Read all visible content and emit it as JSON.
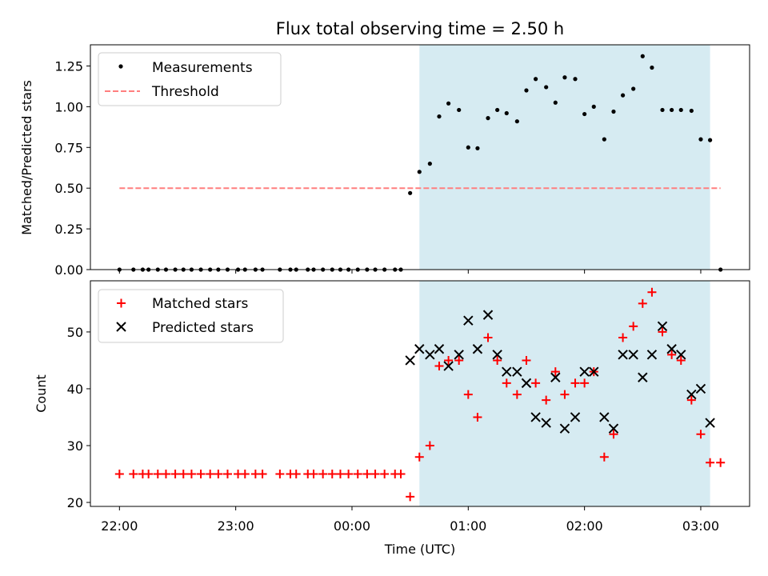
{
  "chart_data": {
    "title": "Flux total observing time = 2.50 h",
    "xlabel": "Time (UTC)",
    "x_tick_labels": [
      "22:00",
      "23:00",
      "00:00",
      "01:00",
      "02:00",
      "03:00"
    ],
    "x_tick_hours": [
      0,
      1,
      2,
      3,
      4,
      5
    ],
    "x_range_hours": [
      -0.25,
      5.42
    ],
    "x_start": "22:00",
    "shaded_span_hours": [
      2.58,
      5.08
    ],
    "shade_color": "#add8e6",
    "top_panel": {
      "type": "scatter",
      "ylabel": "Matched/Predicted stars",
      "ylim": [
        0,
        1.38
      ],
      "y_ticks": [
        0.0,
        0.25,
        0.5,
        0.75,
        1.0,
        1.25
      ],
      "y_tick_labels": [
        "0.00",
        "0.25",
        "0.50",
        "0.75",
        "1.00",
        "1.25"
      ],
      "legend": [
        "Measurements",
        "Threshold"
      ],
      "threshold": {
        "y": 0.5,
        "x_range_hours": [
          0,
          5.17
        ],
        "color": "#ff7f7f"
      },
      "measurements": {
        "color": "#000000",
        "x_hours": [
          0,
          0.12,
          0.2,
          0.25,
          0.33,
          0.4,
          0.48,
          0.55,
          0.62,
          0.7,
          0.78,
          0.85,
          0.93,
          1.02,
          1.08,
          1.17,
          1.23,
          1.38,
          1.47,
          1.52,
          1.62,
          1.67,
          1.75,
          1.83,
          1.9,
          1.97,
          2.05,
          2.13,
          2.2,
          2.28,
          2.37,
          2.42,
          2.5,
          2.58,
          2.67,
          2.75,
          2.83,
          2.92,
          3.0,
          3.08,
          3.17,
          3.25,
          3.33,
          3.42,
          3.5,
          3.58,
          3.67,
          3.75,
          3.83,
          3.92,
          4.0,
          4.08,
          4.17,
          4.25,
          4.33,
          4.42,
          4.5,
          4.58,
          4.67,
          4.75,
          4.83,
          4.92,
          5.0,
          5.08,
          5.17
        ],
        "y": [
          0,
          0,
          0,
          0,
          0,
          0,
          0,
          0,
          0,
          0,
          0,
          0,
          0,
          0,
          0,
          0,
          0,
          0,
          0,
          0,
          0,
          0,
          0,
          0,
          0,
          0,
          0,
          0,
          0,
          0,
          0,
          0,
          0.47,
          0.6,
          0.65,
          0.94,
          1.02,
          0.98,
          0.75,
          0.745,
          0.93,
          0.98,
          0.96,
          0.91,
          1.1,
          1.17,
          1.12,
          1.025,
          1.18,
          1.17,
          0.955,
          1.0,
          0.8,
          0.97,
          1.07,
          1.11,
          1.31,
          1.24,
          0.98,
          0.98,
          0.98,
          0.975,
          0.8,
          0.795,
          0.0
        ]
      }
    },
    "bottom_panel": {
      "type": "scatter",
      "ylabel": "Count",
      "ylim": [
        19.3,
        59.0
      ],
      "y_ticks": [
        20,
        30,
        40,
        50
      ],
      "y_tick_labels": [
        "20",
        "30",
        "40",
        "50"
      ],
      "legend": [
        "Matched stars",
        "Predicted stars"
      ],
      "matched": {
        "color": "#ff0000",
        "x_hours": [
          0,
          0.12,
          0.2,
          0.25,
          0.33,
          0.4,
          0.48,
          0.55,
          0.62,
          0.7,
          0.78,
          0.85,
          0.93,
          1.02,
          1.08,
          1.17,
          1.23,
          1.38,
          1.47,
          1.52,
          1.62,
          1.67,
          1.75,
          1.83,
          1.9,
          1.97,
          2.05,
          2.13,
          2.2,
          2.28,
          2.37,
          2.42,
          2.5,
          2.58,
          2.67,
          2.75,
          2.83,
          2.92,
          3.0,
          3.08,
          3.17,
          3.25,
          3.33,
          3.42,
          3.5,
          3.58,
          3.67,
          3.75,
          3.83,
          3.92,
          4.0,
          4.08,
          4.17,
          4.25,
          4.33,
          4.42,
          4.5,
          4.58,
          4.67,
          4.75,
          4.83,
          4.92,
          5.0,
          5.08,
          5.17
        ],
        "y": [
          25,
          25,
          25,
          25,
          25,
          25,
          25,
          25,
          25,
          25,
          25,
          25,
          25,
          25,
          25,
          25,
          25,
          25,
          25,
          25,
          25,
          25,
          25,
          25,
          25,
          25,
          25,
          25,
          25,
          25,
          25,
          25,
          21,
          28,
          30,
          44,
          45,
          45,
          39,
          35,
          49,
          45,
          41,
          39,
          45,
          41,
          38,
          43,
          39,
          41,
          41,
          43,
          28,
          32,
          49,
          51,
          55,
          57,
          50,
          46,
          45,
          38,
          32,
          27,
          27
        ]
      },
      "predicted": {
        "color": "#000000",
        "x_hours": [
          2.5,
          2.58,
          2.67,
          2.75,
          2.83,
          2.92,
          3.0,
          3.08,
          3.17,
          3.25,
          3.33,
          3.42,
          3.5,
          3.58,
          3.67,
          3.75,
          3.83,
          3.92,
          4.0,
          4.08,
          4.17,
          4.25,
          4.33,
          4.42,
          4.5,
          4.58,
          4.67,
          4.75,
          4.83,
          4.92,
          5.0,
          5.08
        ],
        "y": [
          45,
          47,
          46,
          47,
          44,
          46,
          52,
          47,
          53,
          46,
          43,
          43,
          41,
          35,
          34,
          42,
          33,
          35,
          43,
          43,
          35,
          33,
          46,
          46,
          42,
          46,
          51,
          47,
          46,
          39,
          40,
          34
        ]
      }
    }
  }
}
